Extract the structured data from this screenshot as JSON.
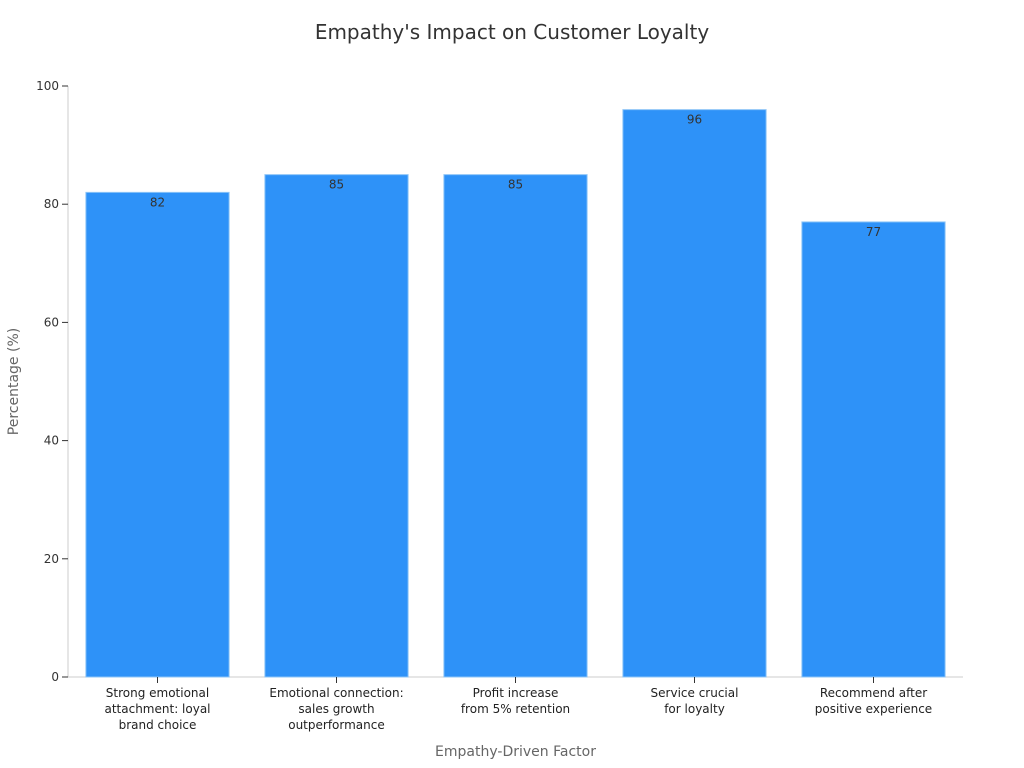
{
  "chart_data": {
    "type": "bar",
    "title": "Empathy's Impact on Customer Loyalty",
    "xlabel": "Empathy-Driven Factor",
    "ylabel": "Percentage (%)",
    "ylim": [
      0,
      100
    ],
    "yticks": [
      0,
      20,
      40,
      60,
      80,
      100
    ],
    "categories": [
      [
        "Strong emotional",
        "attachment: loyal",
        "brand choice"
      ],
      [
        "Emotional connection:",
        "sales growth",
        "outperformance"
      ],
      [
        "Profit increase",
        "from 5% retention"
      ],
      [
        "Service crucial",
        "for loyalty"
      ],
      [
        "Recommend after",
        "positive experience"
      ]
    ],
    "values": [
      82,
      85,
      85,
      96,
      77
    ],
    "bar_color": "#2e92f8",
    "bar_edge_color": "#8cc4f7",
    "grid": false,
    "legend": "none"
  }
}
